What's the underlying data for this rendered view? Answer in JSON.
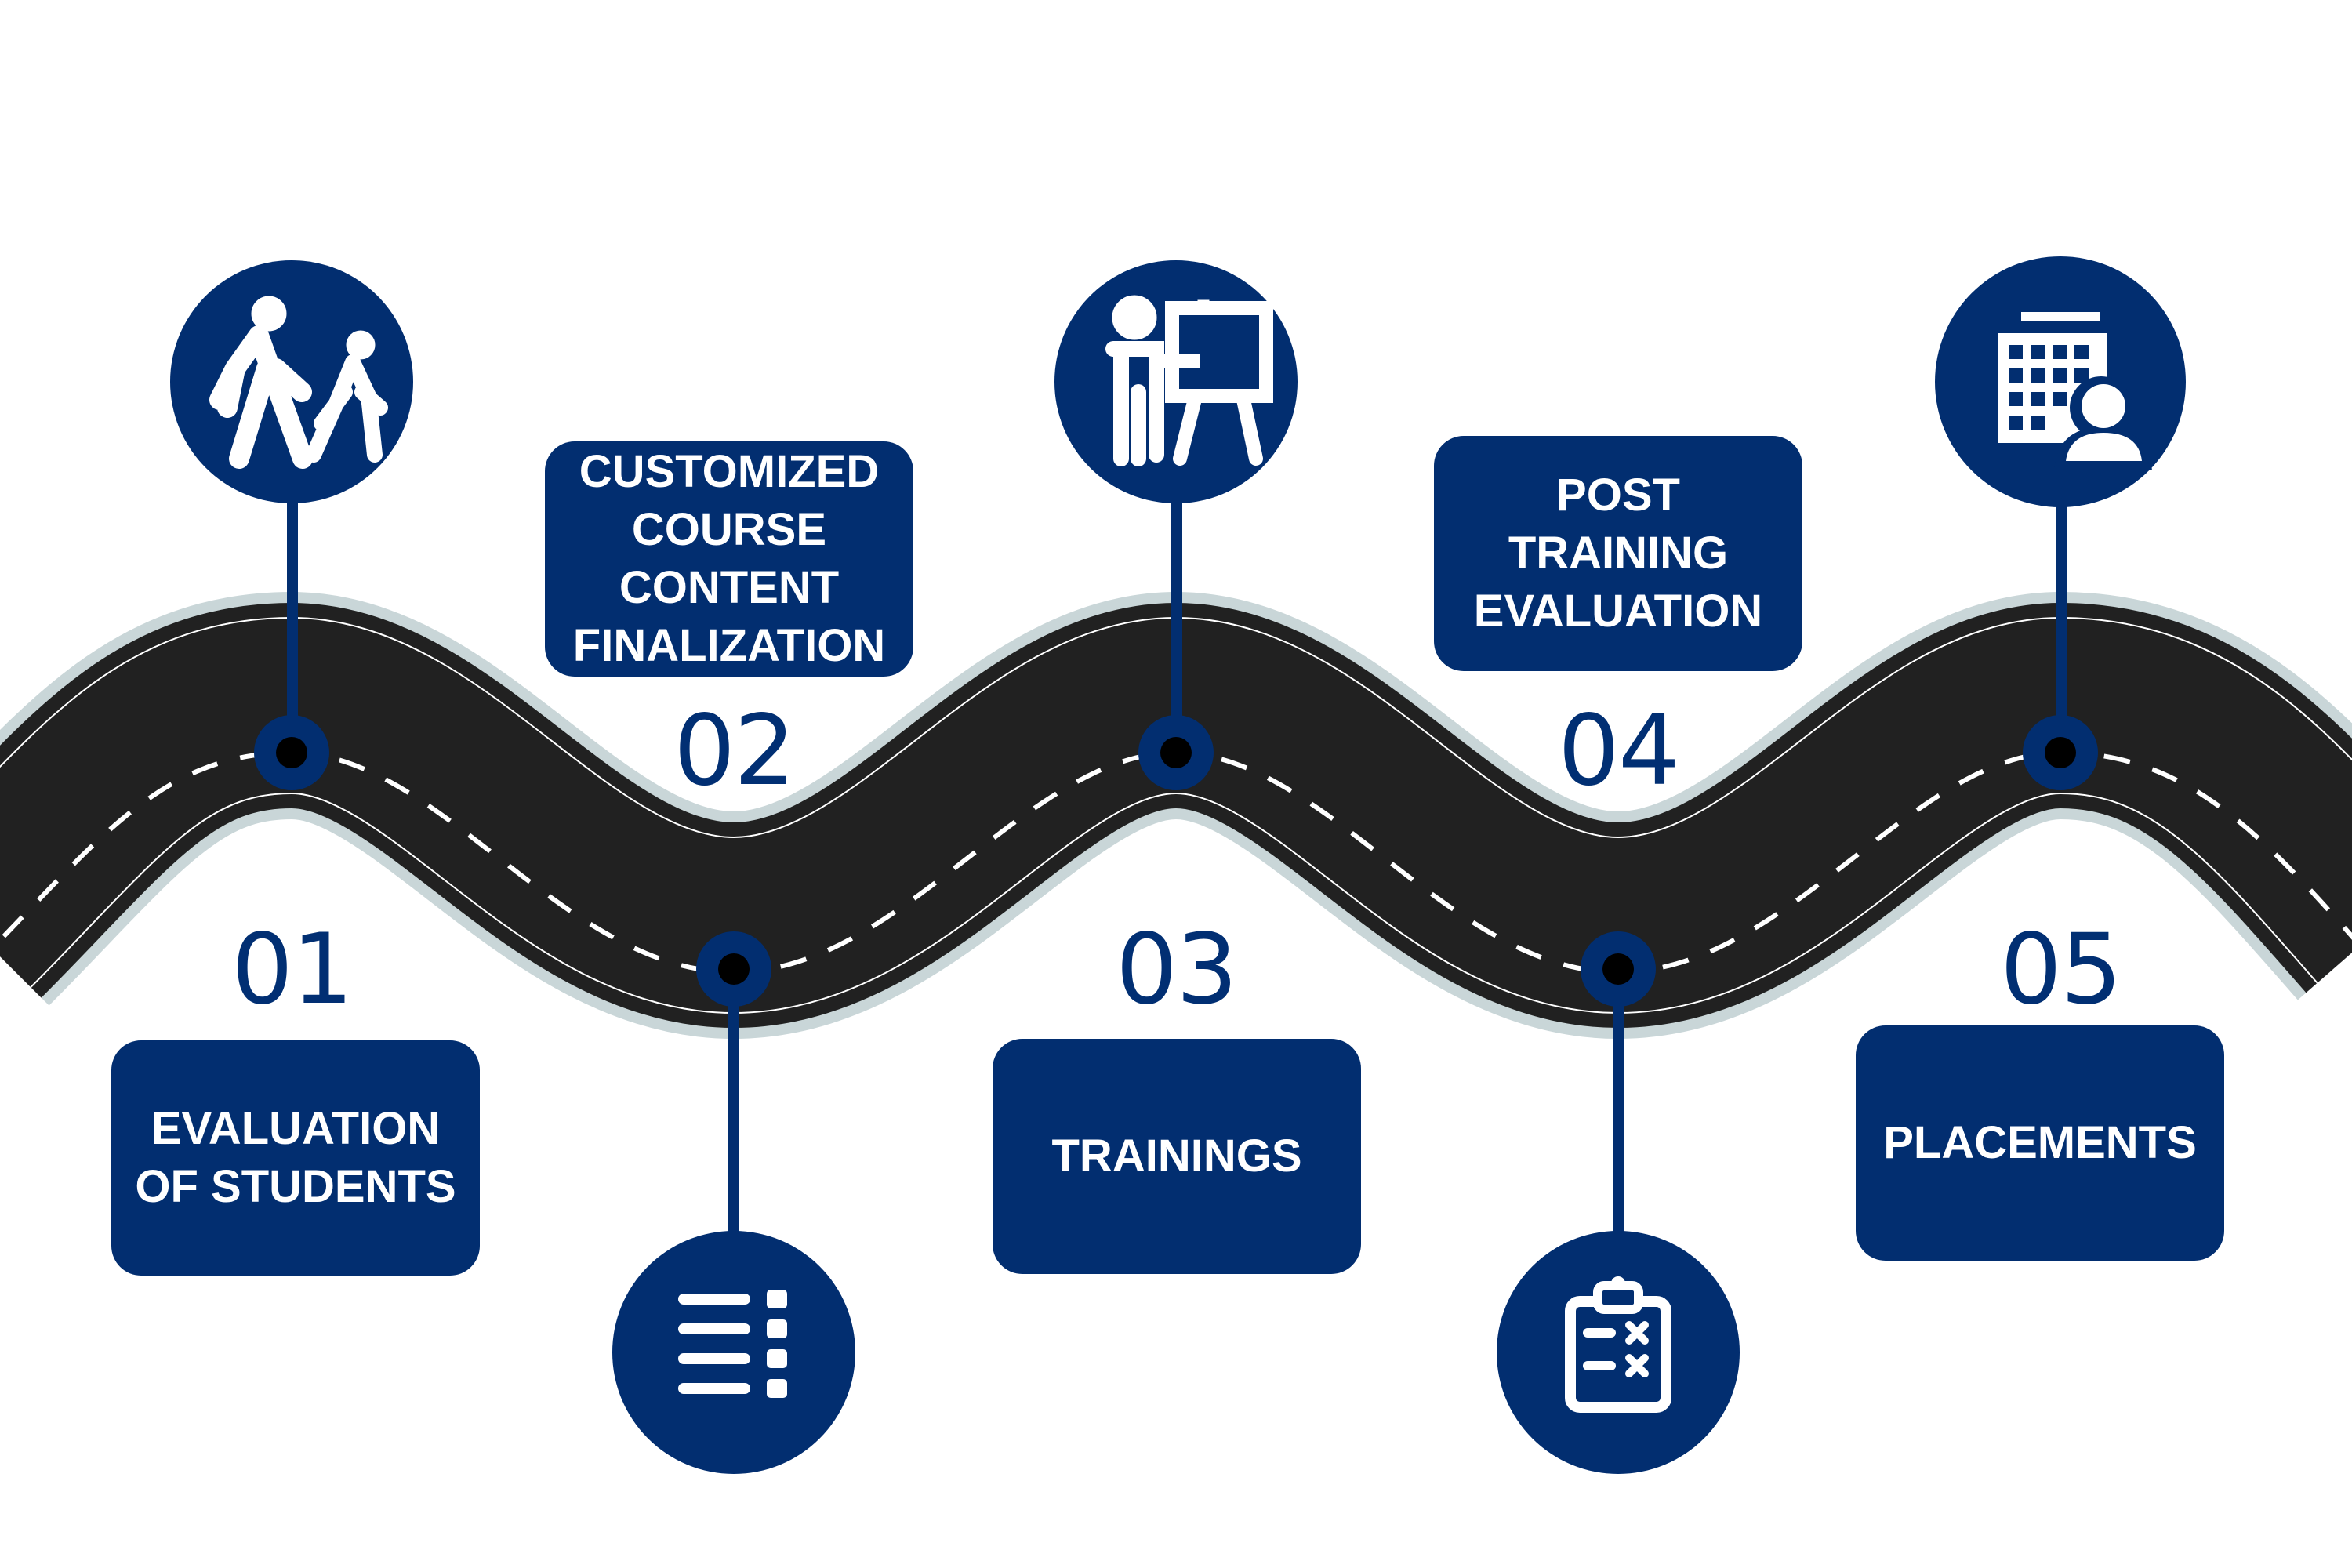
{
  "colors": {
    "navy": "#022e70",
    "road": "#212121",
    "road_edge": "#c9d6d8",
    "lane_line": "#ffffff",
    "node_fill": "#000000",
    "background": "#ffffff"
  },
  "steps": [
    {
      "number": "01",
      "label": "EVALUATION\nOF STUDENTS",
      "icon": "walking-people-icon"
    },
    {
      "number": "02",
      "label": "CUSTOMIZED\nCOURSE\nCONTENT\nFINALIZATION",
      "icon": "list-checklist-icon"
    },
    {
      "number": "03",
      "label": "TRAININGS",
      "icon": "presentation-board-icon"
    },
    {
      "number": "04",
      "label": "POST\nTRAINING\nEVALUATION",
      "icon": "clipboard-evaluation-icon"
    },
    {
      "number": "05",
      "label": "PLACEMENTS",
      "icon": "office-building-person-icon"
    }
  ]
}
